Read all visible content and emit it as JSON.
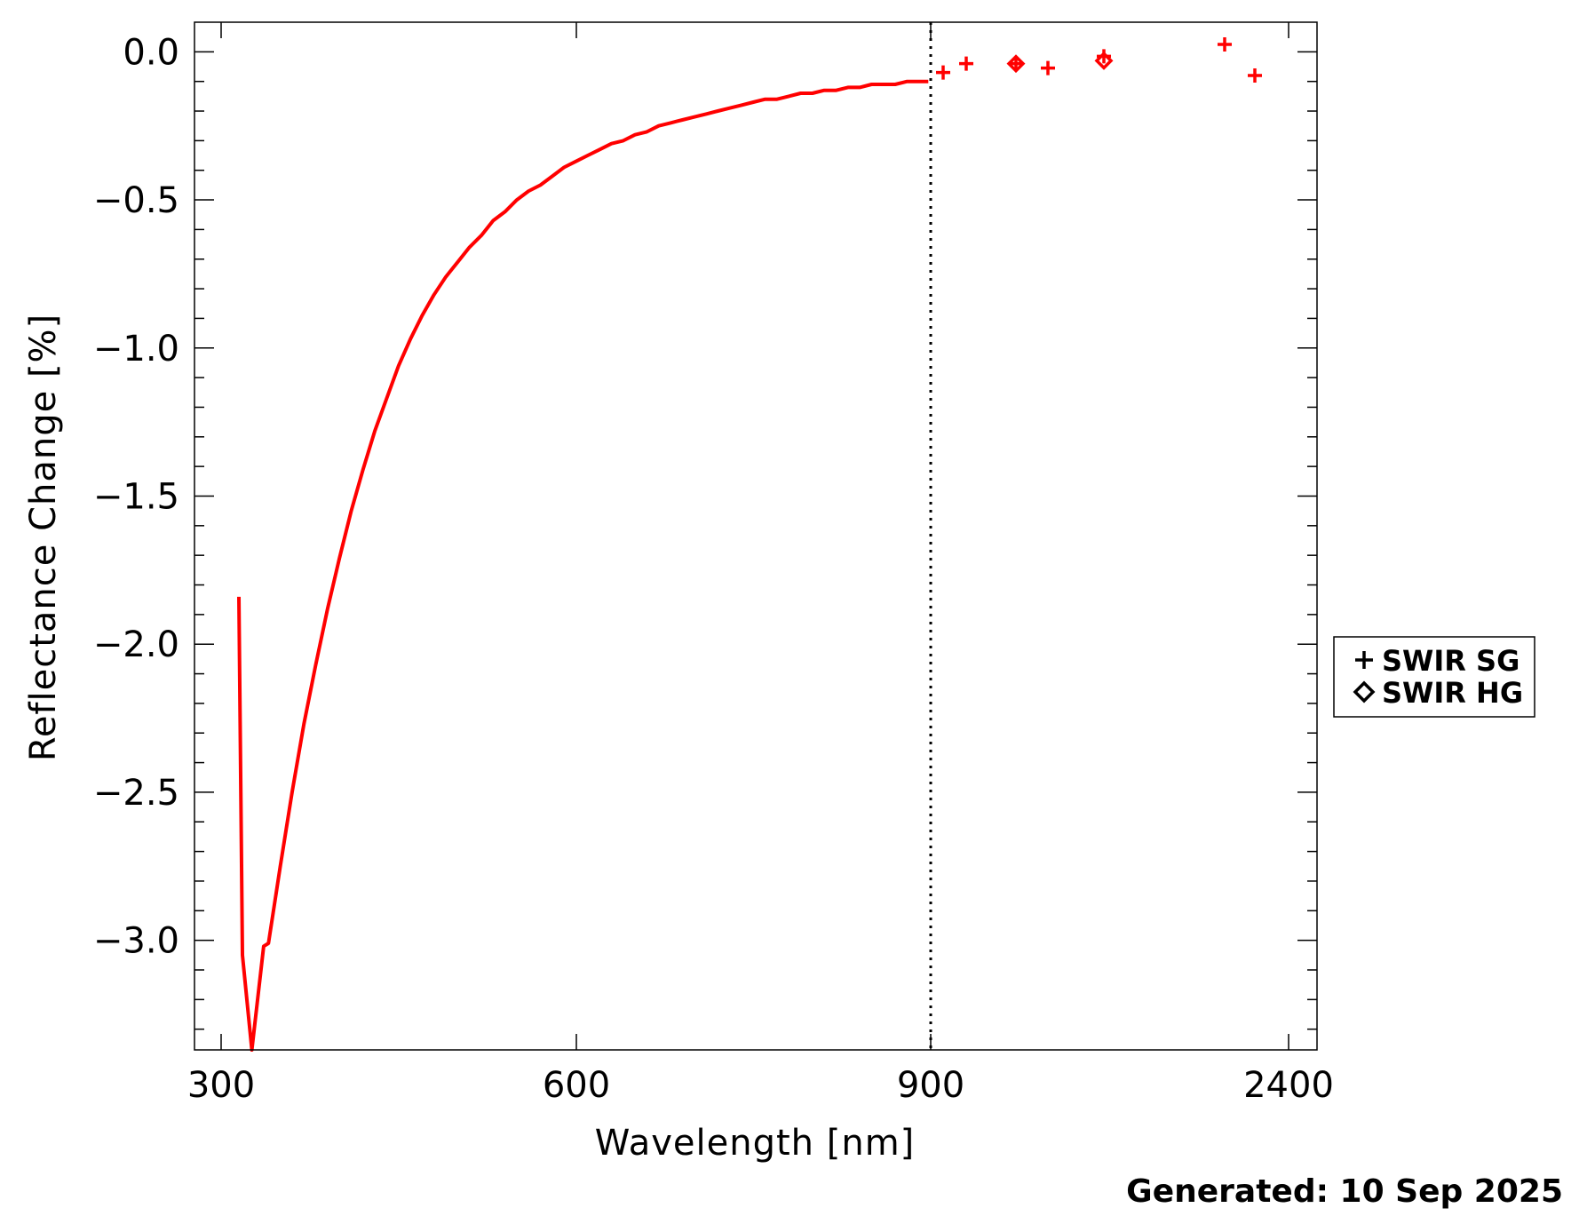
{
  "chart_data": {
    "type": "line",
    "xlabel": "Wavelength [nm]",
    "ylabel": "Reflectance Change [%]",
    "x_tick_labels": [
      "300",
      "600",
      "900",
      "2400"
    ],
    "y_tick_labels": [
      "0.0",
      "−0.5",
      "−1.0",
      "−1.5",
      "−2.0",
      "−2.5",
      "−3.0"
    ],
    "ylim": [
      -3.37,
      0.1
    ],
    "y_ticks": [
      0.0,
      -0.5,
      -1.0,
      -1.5,
      -2.0,
      -2.5,
      -3.0
    ],
    "x_axis_note": "broken axis: 300-900 nm linear, 900-2400 nm compressed",
    "divider_x": 900,
    "grid": false,
    "legend_position": "right",
    "series": [
      {
        "type": "line",
        "color": "#ff0000",
        "points": [
          [
            315,
            -1.84
          ],
          [
            318,
            -3.05
          ],
          [
            326,
            -3.37
          ],
          [
            336,
            -3.02
          ],
          [
            340,
            -3.01
          ],
          [
            350,
            -2.75
          ],
          [
            360,
            -2.5
          ],
          [
            370,
            -2.27
          ],
          [
            380,
            -2.07
          ],
          [
            390,
            -1.88
          ],
          [
            400,
            -1.71
          ],
          [
            410,
            -1.55
          ],
          [
            420,
            -1.41
          ],
          [
            430,
            -1.28
          ],
          [
            440,
            -1.17
          ],
          [
            450,
            -1.06
          ],
          [
            460,
            -0.97
          ],
          [
            470,
            -0.89
          ],
          [
            480,
            -0.82
          ],
          [
            490,
            -0.76
          ],
          [
            500,
            -0.71
          ],
          [
            510,
            -0.66
          ],
          [
            520,
            -0.62
          ],
          [
            530,
            -0.57
          ],
          [
            540,
            -0.54
          ],
          [
            550,
            -0.5
          ],
          [
            560,
            -0.47
          ],
          [
            570,
            -0.45
          ],
          [
            580,
            -0.42
          ],
          [
            590,
            -0.39
          ],
          [
            600,
            -0.37
          ],
          [
            610,
            -0.35
          ],
          [
            620,
            -0.33
          ],
          [
            630,
            -0.31
          ],
          [
            640,
            -0.3
          ],
          [
            650,
            -0.28
          ],
          [
            660,
            -0.27
          ],
          [
            670,
            -0.25
          ],
          [
            680,
            -0.24
          ],
          [
            690,
            -0.23
          ],
          [
            700,
            -0.22
          ],
          [
            710,
            -0.21
          ],
          [
            720,
            -0.2
          ],
          [
            730,
            -0.19
          ],
          [
            740,
            -0.18
          ],
          [
            750,
            -0.17
          ],
          [
            760,
            -0.16
          ],
          [
            770,
            -0.16
          ],
          [
            780,
            -0.15
          ],
          [
            790,
            -0.14
          ],
          [
            800,
            -0.14
          ],
          [
            810,
            -0.13
          ],
          [
            820,
            -0.13
          ],
          [
            830,
            -0.12
          ],
          [
            840,
            -0.12
          ],
          [
            850,
            -0.11
          ],
          [
            860,
            -0.11
          ],
          [
            870,
            -0.11
          ],
          [
            880,
            -0.1
          ],
          [
            890,
            -0.1
          ],
          [
            898,
            -0.1
          ]
        ]
      },
      {
        "name": "SWIR SG",
        "type": "scatter",
        "marker": "plus",
        "color": "#ff0000",
        "points": [
          [
            940,
            -0.07
          ],
          [
            1020,
            -0.04
          ],
          [
            1200,
            -0.04
          ],
          [
            1300,
            -0.055
          ],
          [
            1500,
            -0.015
          ],
          [
            1900,
            0.025
          ],
          [
            2000,
            -0.08
          ]
        ]
      },
      {
        "name": "SWIR HG",
        "type": "scatter",
        "marker": "diamond",
        "color": "#ff0000",
        "points": [
          [
            1200,
            -0.04
          ],
          [
            1500,
            -0.03
          ]
        ]
      }
    ],
    "legend": [
      {
        "label": "SWIR  SG",
        "marker": "plus",
        "color": "#000000"
      },
      {
        "label": "SWIR  HG",
        "marker": "diamond",
        "color": "#000000"
      }
    ]
  },
  "footer": {
    "generated": "Generated: 10 Sep 2025"
  }
}
